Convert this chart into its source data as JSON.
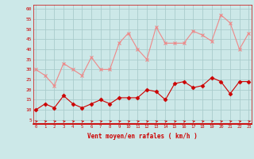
{
  "x": [
    0,
    1,
    2,
    3,
    4,
    5,
    6,
    7,
    8,
    9,
    10,
    11,
    12,
    13,
    14,
    15,
    16,
    17,
    18,
    19,
    20,
    21,
    22,
    23
  ],
  "wind_avg": [
    10,
    13,
    11,
    17,
    13,
    11,
    13,
    15,
    13,
    16,
    16,
    16,
    20,
    19,
    15,
    23,
    24,
    21,
    22,
    26,
    24,
    18,
    24,
    24
  ],
  "wind_gust": [
    30,
    27,
    22,
    33,
    30,
    27,
    36,
    30,
    30,
    43,
    48,
    40,
    35,
    51,
    43,
    43,
    43,
    49,
    47,
    44,
    57,
    53,
    40,
    48
  ],
  "bg_color": "#cce8e8",
  "grid_color": "#aacccc",
  "avg_color": "#cc0000",
  "gust_color": "#ee8888",
  "xlabel": "Vent moyen/en rafales ( km/h )",
  "yticks": [
    5,
    10,
    15,
    20,
    25,
    30,
    35,
    40,
    45,
    50,
    55,
    60
  ],
  "ylim": [
    3,
    62
  ],
  "xlim": [
    -0.3,
    23.3
  ]
}
